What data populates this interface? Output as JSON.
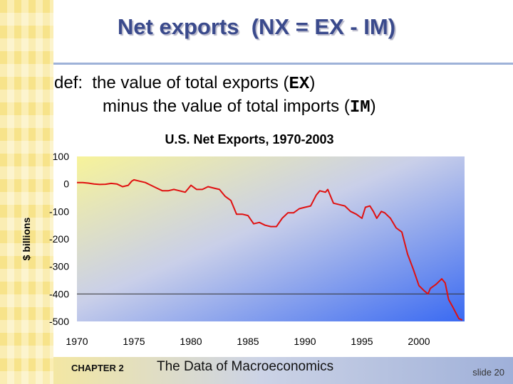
{
  "slide": {
    "title_main": "Net exports",
    "title_formula": "(NX = EX - IM)",
    "def_prefix": "def:  the value of total exports (",
    "def_ex": "EX",
    "def_close1": ")",
    "def_line2_prefix": "minus the value of total imports (",
    "def_im": "IM",
    "def_close2": ")",
    "chapter_label": "CHAPTER 2",
    "book_title": "The Data of Macroeconomics",
    "slide_number": "slide 20"
  },
  "chart_data": {
    "type": "line",
    "title": "U.S. Net Exports, 1970-2003",
    "xlabel": "",
    "ylabel": "$ billions",
    "xlim": [
      1970,
      2004
    ],
    "ylim": [
      -500,
      100
    ],
    "xticks": [
      1970,
      1975,
      1980,
      1985,
      1990,
      1995,
      2000
    ],
    "yticks": [
      100,
      0,
      -100,
      -200,
      -300,
      -400,
      -500
    ],
    "ytick_labels": [
      "100",
      "0",
      "-100",
      "-200",
      "-300",
      "-400",
      "-500"
    ],
    "reference_line": -400,
    "grid": false,
    "series": [
      {
        "color": "#e01010",
        "x": [
          1970,
          1970.5,
          1971,
          1971.5,
          1972,
          1972.5,
          1973,
          1973.5,
          1974,
          1974.5,
          1974.8,
          1975,
          1975.5,
          1976,
          1976.5,
          1977,
          1977.5,
          1978,
          1978.5,
          1979,
          1979.5,
          1980,
          1980.5,
          1981,
          1981.5,
          1982,
          1982.5,
          1983,
          1983.5,
          1984,
          1984.5,
          1985,
          1985.5,
          1986,
          1986.5,
          1987,
          1987.5,
          1988,
          1988.5,
          1989,
          1989.5,
          1990,
          1990.5,
          1991,
          1991.3,
          1991.8,
          1992,
          1992.5,
          1993,
          1993.5,
          1994,
          1994.5,
          1995,
          1995.3,
          1995.7,
          1996,
          1996.3,
          1996.7,
          1997,
          1997.5,
          1998,
          1998.5,
          1999,
          1999.5,
          2000,
          2000.5,
          2000.8,
          2001,
          2001.5,
          2002,
          2002.3,
          2002.6,
          2003,
          2003.5,
          2003.8
        ],
        "values": [
          5,
          5,
          3,
          0,
          -2,
          -1,
          2,
          0,
          -10,
          -5,
          10,
          15,
          10,
          5,
          -5,
          -15,
          -25,
          -25,
          -20,
          -25,
          -30,
          -5,
          -20,
          -20,
          -10,
          -15,
          -20,
          -45,
          -60,
          -110,
          -110,
          -115,
          -145,
          -140,
          -150,
          -155,
          -155,
          -125,
          -105,
          -105,
          -90,
          -85,
          -80,
          -40,
          -25,
          -30,
          -20,
          -70,
          -75,
          -80,
          -100,
          -110,
          -125,
          -85,
          -80,
          -100,
          -125,
          -100,
          -105,
          -125,
          -160,
          -175,
          -255,
          -310,
          -370,
          -390,
          -400,
          -380,
          -365,
          -345,
          -360,
          -420,
          -450,
          -490,
          -495
        ]
      }
    ]
  }
}
